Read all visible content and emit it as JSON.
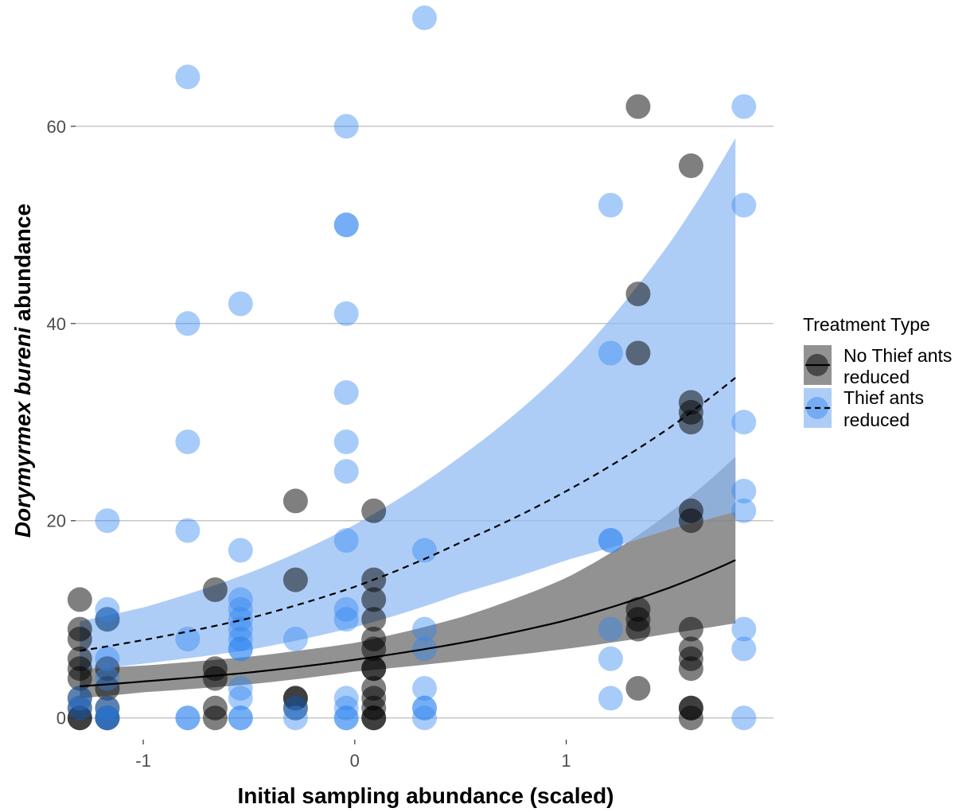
{
  "chart_data": {
    "type": "scatter",
    "xlabel": "Initial sampling abundance (scaled)",
    "ylabel_italic": "Dorymyrmex bureni",
    "ylabel_rest": " abundance",
    "xlim": [
      -1.32,
      1.98
    ],
    "ylim": [
      -2.2,
      72
    ],
    "x_ticks": [
      -1,
      0,
      1
    ],
    "x_tick_labels": [
      "-1",
      "0",
      "1"
    ],
    "y_ticks": [
      0,
      20,
      40,
      60
    ],
    "y_tick_labels": [
      "0",
      "20",
      "40",
      "60"
    ],
    "grid": "horizontal major",
    "legend": {
      "title": "Treatment Type",
      "position": "right",
      "entries": [
        {
          "label_line1": "No Thief ants",
          "label_line2": " reduced",
          "color": "#000000",
          "fill": "#7f7f7f",
          "linetype": "solid"
        },
        {
          "label_line1": "Thief ants",
          "label_line2": " reduced",
          "color": "#2f86f0",
          "fill": "#8fbaf2",
          "linetype": "dashed"
        }
      ]
    },
    "series": [
      {
        "name": "No Thief ants reduced",
        "color": "#000000",
        "points": [
          [
            -1.3,
            12
          ],
          [
            -1.3,
            9
          ],
          [
            -1.3,
            8
          ],
          [
            -1.3,
            6
          ],
          [
            -1.3,
            5
          ],
          [
            -1.3,
            4
          ],
          [
            -1.3,
            2
          ],
          [
            -1.3,
            1
          ],
          [
            -1.3,
            0
          ],
          [
            -1.3,
            0
          ],
          [
            -1.17,
            10
          ],
          [
            -1.17,
            5
          ],
          [
            -1.17,
            3
          ],
          [
            -1.17,
            1
          ],
          [
            -1.17,
            0
          ],
          [
            -1.17,
            0
          ],
          [
            -0.66,
            13
          ],
          [
            -0.66,
            5
          ],
          [
            -0.66,
            4
          ],
          [
            -0.66,
            1
          ],
          [
            -0.66,
            0
          ],
          [
            -0.28,
            22
          ],
          [
            -0.28,
            14
          ],
          [
            -0.28,
            2
          ],
          [
            -0.28,
            2
          ],
          [
            -0.28,
            1
          ],
          [
            0.09,
            21
          ],
          [
            0.09,
            14
          ],
          [
            0.09,
            12
          ],
          [
            0.09,
            10
          ],
          [
            0.09,
            8
          ],
          [
            0.09,
            7
          ],
          [
            0.09,
            5
          ],
          [
            0.09,
            5
          ],
          [
            0.09,
            3
          ],
          [
            0.09,
            2
          ],
          [
            0.09,
            1
          ],
          [
            0.09,
            0
          ],
          [
            0.09,
            0
          ],
          [
            1.34,
            62
          ],
          [
            1.34,
            43
          ],
          [
            1.34,
            37
          ],
          [
            1.34,
            11
          ],
          [
            1.34,
            10
          ],
          [
            1.34,
            9
          ],
          [
            1.34,
            3
          ],
          [
            1.59,
            56
          ],
          [
            1.59,
            32
          ],
          [
            1.59,
            31
          ],
          [
            1.59,
            30
          ],
          [
            1.59,
            21
          ],
          [
            1.59,
            20
          ],
          [
            1.59,
            9
          ],
          [
            1.59,
            7
          ],
          [
            1.59,
            6
          ],
          [
            1.59,
            5
          ],
          [
            1.59,
            1
          ],
          [
            1.59,
            1
          ],
          [
            1.59,
            0
          ]
        ],
        "fit": {
          "x": [
            -1.3,
            -1.0,
            -0.5,
            0.0,
            0.5,
            1.0,
            1.5,
            1.8
          ],
          "y": [
            3.2,
            3.7,
            4.6,
            5.9,
            7.6,
            9.9,
            13.3,
            16.0
          ]
        },
        "band": {
          "x": [
            -1.3,
            -1.0,
            -0.5,
            0.0,
            0.5,
            1.0,
            1.5,
            1.8
          ],
          "lower": [
            2.0,
            2.6,
            3.4,
            4.7,
            5.8,
            7.0,
            8.6,
            9.6
          ],
          "upper": [
            5.0,
            5.3,
            6.2,
            7.6,
            10.2,
            14.2,
            21.0,
            26.5
          ]
        }
      },
      {
        "name": "Thief ants reduced",
        "color": "#2f86f0",
        "points": [
          [
            -1.3,
            2
          ],
          [
            -1.3,
            1
          ],
          [
            -1.17,
            20
          ],
          [
            -1.17,
            11
          ],
          [
            -1.17,
            10
          ],
          [
            -1.17,
            6
          ],
          [
            -1.17,
            4
          ],
          [
            -1.17,
            1
          ],
          [
            -1.17,
            0
          ],
          [
            -1.17,
            0
          ],
          [
            -0.79,
            65
          ],
          [
            -0.79,
            40
          ],
          [
            -0.79,
            28
          ],
          [
            -0.79,
            19
          ],
          [
            -0.79,
            8
          ],
          [
            -0.79,
            0
          ],
          [
            -0.79,
            0
          ],
          [
            -0.54,
            42
          ],
          [
            -0.54,
            17
          ],
          [
            -0.54,
            12
          ],
          [
            -0.54,
            11
          ],
          [
            -0.54,
            10
          ],
          [
            -0.54,
            9
          ],
          [
            -0.54,
            8
          ],
          [
            -0.54,
            7
          ],
          [
            -0.54,
            7
          ],
          [
            -0.54,
            3
          ],
          [
            -0.54,
            2
          ],
          [
            -0.54,
            0
          ],
          [
            -0.54,
            0
          ],
          [
            -0.28,
            8
          ],
          [
            -0.28,
            1
          ],
          [
            -0.28,
            0
          ],
          [
            -0.04,
            60
          ],
          [
            -0.04,
            50
          ],
          [
            -0.04,
            50
          ],
          [
            -0.04,
            41
          ],
          [
            -0.04,
            33
          ],
          [
            -0.04,
            28
          ],
          [
            -0.04,
            25
          ],
          [
            -0.04,
            18
          ],
          [
            -0.04,
            11
          ],
          [
            -0.04,
            10
          ],
          [
            -0.04,
            2
          ],
          [
            -0.04,
            1
          ],
          [
            -0.04,
            0
          ],
          [
            -0.04,
            0
          ],
          [
            0.33,
            71
          ],
          [
            0.33,
            17
          ],
          [
            0.33,
            9
          ],
          [
            0.33,
            7
          ],
          [
            0.33,
            3
          ],
          [
            0.33,
            1
          ],
          [
            0.33,
            1
          ],
          [
            0.33,
            0
          ],
          [
            1.21,
            52
          ],
          [
            1.21,
            37
          ],
          [
            1.21,
            18
          ],
          [
            1.21,
            18
          ],
          [
            1.21,
            9
          ],
          [
            1.21,
            6
          ],
          [
            1.21,
            2
          ],
          [
            1.84,
            62
          ],
          [
            1.84,
            52
          ],
          [
            1.84,
            30
          ],
          [
            1.84,
            23
          ],
          [
            1.84,
            21
          ],
          [
            1.84,
            9
          ],
          [
            1.84,
            7
          ],
          [
            1.84,
            0
          ]
        ],
        "fit": {
          "x": [
            -1.3,
            -1.0,
            -0.5,
            0.0,
            0.5,
            1.0,
            1.5,
            1.8
          ],
          "y": [
            6.8,
            7.9,
            10.1,
            13.3,
            17.8,
            23.0,
            29.6,
            34.5
          ]
        },
        "band": {
          "x": [
            -1.3,
            -1.0,
            -0.5,
            0.0,
            0.5,
            1.0,
            1.5,
            1.8
          ],
          "lower": [
            4.8,
            5.5,
            6.9,
            9.2,
            12.6,
            16.0,
            19.2,
            20.9
          ],
          "upper": [
            9.8,
            11.2,
            14.7,
            19.6,
            26.5,
            35.5,
            48.5,
            58.8
          ]
        }
      }
    ]
  }
}
